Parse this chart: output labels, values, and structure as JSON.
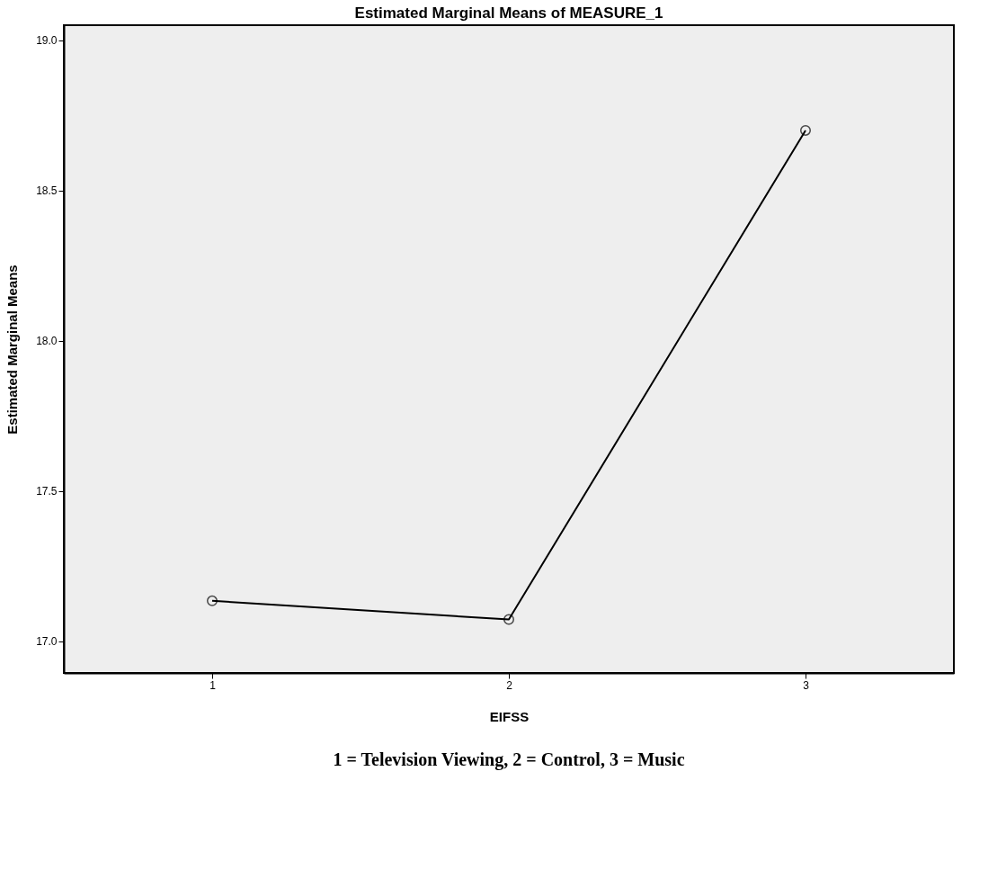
{
  "chart_data": {
    "type": "line",
    "title": "Estimated Marginal Means of MEASURE_1",
    "xlabel": "EIFSS",
    "ylabel": "Estimated Marginal Means",
    "categories": [
      "1",
      "2",
      "3"
    ],
    "series": [
      {
        "color": "#000000",
        "values": [
          17.135,
          17.073,
          18.7
        ]
      }
    ],
    "ylim": [
      16.895,
      19.05
    ],
    "yticks": [
      {
        "value": 17,
        "label": "17.0"
      },
      17.5,
      {
        "value": 18,
        "label": "18.0"
      },
      18.5,
      {
        "value": 19,
        "label": "19.0"
      }
    ],
    "grid": false,
    "marker": "circle",
    "line_style": "solid",
    "annotations": [
      "1 = Television Viewing, 2 = Control, 3 = Music"
    ]
  }
}
